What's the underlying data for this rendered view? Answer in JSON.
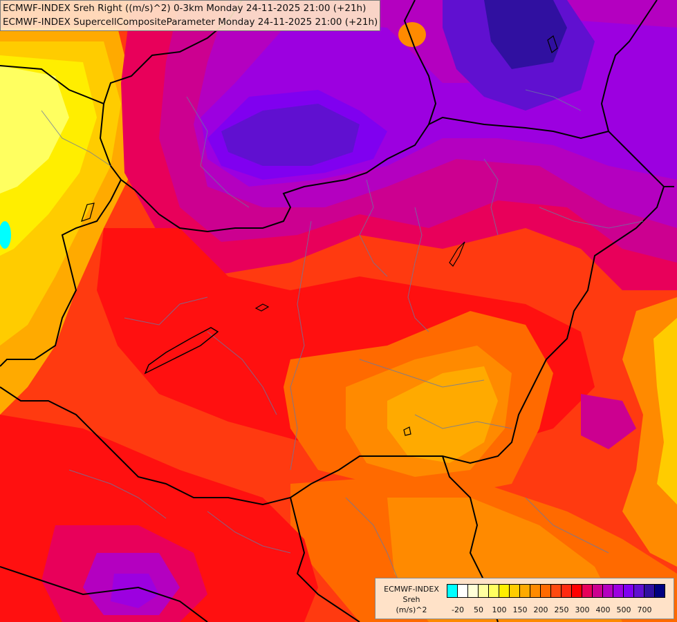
{
  "titles": {
    "line1": "ECMWF-INDEX Sreh Right ((m/s)^2) 0-3km Monday 24-11-2025 21:00 (+21h)",
    "line2": "ECMWF-INDEX SupercellCompositeParameter Monday 24-11-2025 21:00 (+21h)"
  },
  "legend": {
    "line1": "ECMWF-INDEX",
    "line2": "Sreh",
    "line3": "(m/s)^2",
    "colors": [
      "#00ffff",
      "#ffffff",
      "#ffffd8",
      "#ffffa0",
      "#ffff60",
      "#ffee00",
      "#ffcc00",
      "#ffaa00",
      "#ff8a00",
      "#ff6a00",
      "#ff4a10",
      "#ff2a10",
      "#ff0000",
      "#e8005a",
      "#cc0090",
      "#b400c0",
      "#9c00e0",
      "#8000f0",
      "#6010d0",
      "#3010a0",
      "#000080"
    ],
    "tick_labels": [
      "-20",
      "50",
      "100",
      "150",
      "200",
      "250",
      "300",
      "400",
      "500",
      "700"
    ]
  }
}
